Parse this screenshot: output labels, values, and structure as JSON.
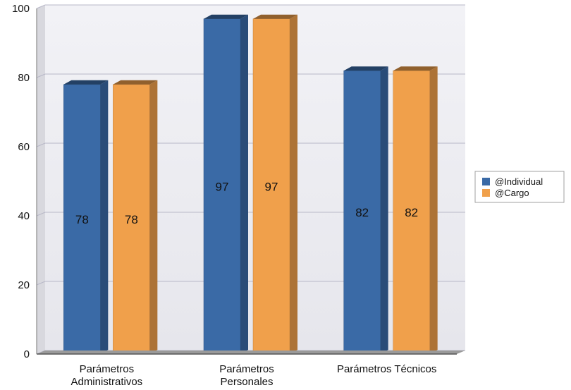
{
  "chart_data": {
    "type": "bar",
    "categories": [
      [
        "Parámetros",
        "Administrativos"
      ],
      [
        "Parámetros",
        "Personales"
      ],
      [
        "Parámetros Técnicos"
      ]
    ],
    "series": [
      {
        "name": "@Individual",
        "values": [
          78,
          97,
          82
        ],
        "color": "#3A6AA6"
      },
      {
        "name": "@Cargo",
        "values": [
          78,
          97,
          82
        ],
        "color": "#F0A04B"
      }
    ],
    "ylim": [
      0,
      100
    ],
    "yticks": [
      0,
      20,
      40,
      60,
      80,
      100
    ],
    "grid": true,
    "legend_position": "right",
    "data_labels": true,
    "style": "3d"
  }
}
